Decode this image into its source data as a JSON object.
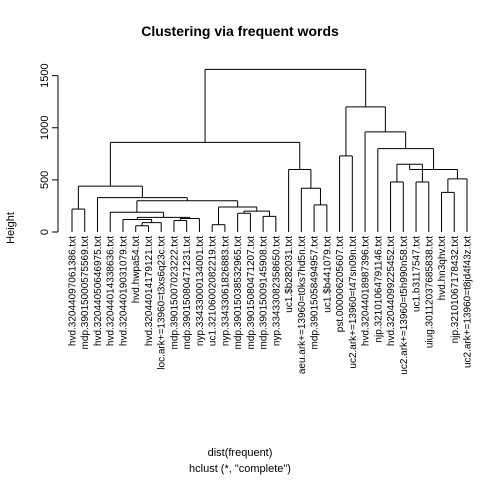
{
  "chart_data": {
    "type": "dendrogram",
    "title": "Clustering via frequent words",
    "ylabel": "Height",
    "xlabel": "dist(frequent)",
    "sublabel": "hclust (*, \"complete\")",
    "ylim": [
      0,
      1650
    ],
    "y_ticks": [
      0,
      500,
      1000,
      1500
    ],
    "leaves": [
      "hvd.32044097061386.txt",
      "mdp.39015000575569.txt",
      "hvd.32044050646975.txt",
      "hvd.32044014338636.txt",
      "hvd.32044019031079.txt",
      "hvd.hwpa54.txt",
      "hvd.32044014179121.txt",
      "loc.ark+=13960=t3xs6q23c.txt",
      "mdp.39015007023222.txt",
      "mdp.39015080471231.txt",
      "nyp.33433000134001.txt",
      "uc1.32106002082219.txt",
      "nyp.33433061826883.txt",
      "mdp.39015038532965.txt",
      "mdp.39015080471207.txt",
      "mdp.39015009145908.txt",
      "nyp.33433082358650.txt",
      "uc1.$b282031.txt",
      "aeu.ark+=13960=t0ks7hd5n.txt",
      "mdp.39015058494957.txt",
      "uc1.$b441079.txt",
      "pst.000006205607.txt",
      "uc2.ark+=13960=t47sn09n.txt",
      "hvd.32044018987396.txt",
      "njp.32101064791146.txt",
      "hvd.32044099225452.txt",
      "uc2.ark+=13960=t5h990n58.txt",
      "uc1.b3117547.txt",
      "uiug.30112037685838.txt",
      "hvd.hn3qhv.txt",
      "njp.32101067178432.txt",
      "uc2.ark+=13960=t8jd4f43z.txt"
    ],
    "merges": [
      {
        "left": [
          "L",
          0
        ],
        "right": [
          "L",
          1
        ],
        "height": 220
      },
      {
        "left": [
          "L",
          5
        ],
        "right": [
          "L",
          6
        ],
        "height": 60
      },
      {
        "left": [
          "M",
          1
        ],
        "right": [
          "L",
          7
        ],
        "height": 90
      },
      {
        "left": [
          "L",
          4
        ],
        "right": [
          "M",
          2
        ],
        "height": 120
      },
      {
        "left": [
          "L",
          8
        ],
        "right": [
          "L",
          9
        ],
        "height": 110
      },
      {
        "left": [
          "M",
          4
        ],
        "right": [
          "L",
          10
        ],
        "height": 130
      },
      {
        "left": [
          "M",
          3
        ],
        "right": [
          "M",
          5
        ],
        "height": 140
      },
      {
        "left": [
          "L",
          3
        ],
        "right": [
          "M",
          6
        ],
        "height": 190
      },
      {
        "left": [
          "L",
          11
        ],
        "right": [
          "L",
          12
        ],
        "height": 70
      },
      {
        "left": [
          "L",
          13
        ],
        "right": [
          "L",
          14
        ],
        "height": 180
      },
      {
        "left": [
          "L",
          15
        ],
        "right": [
          "L",
          16
        ],
        "height": 150
      },
      {
        "left": [
          "M",
          9
        ],
        "right": [
          "M",
          10
        ],
        "height": 200
      },
      {
        "left": [
          "M",
          8
        ],
        "right": [
          "M",
          11
        ],
        "height": 240
      },
      {
        "left": [
          "M",
          7
        ],
        "right": [
          "M",
          12
        ],
        "height": 300
      },
      {
        "left": [
          "L",
          2
        ],
        "right": [
          "M",
          13
        ],
        "height": 330
      },
      {
        "left": [
          "M",
          0
        ],
        "right": [
          "M",
          14
        ],
        "height": 440
      },
      {
        "left": [
          "L",
          19
        ],
        "right": [
          "L",
          20
        ],
        "height": 260
      },
      {
        "left": [
          "L",
          18
        ],
        "right": [
          "M",
          16
        ],
        "height": 420
      },
      {
        "left": [
          "L",
          17
        ],
        "right": [
          "M",
          17
        ],
        "height": 600
      },
      {
        "left": [
          "M",
          15
        ],
        "right": [
          "M",
          18
        ],
        "height": 860
      },
      {
        "left": [
          "L",
          21
        ],
        "right": [
          "L",
          22
        ],
        "height": 730
      },
      {
        "left": [
          "L",
          25
        ],
        "right": [
          "L",
          26
        ],
        "height": 480
      },
      {
        "left": [
          "L",
          27
        ],
        "right": [
          "L",
          28
        ],
        "height": 480
      },
      {
        "left": [
          "M",
          21
        ],
        "right": [
          "M",
          22
        ],
        "height": 650
      },
      {
        "left": [
          "L",
          29
        ],
        "right": [
          "L",
          30
        ],
        "height": 380
      },
      {
        "left": [
          "M",
          24
        ],
        "right": [
          "L",
          31
        ],
        "height": 510
      },
      {
        "left": [
          "M",
          23
        ],
        "right": [
          "M",
          25
        ],
        "height": 600
      },
      {
        "left": [
          "L",
          24
        ],
        "right": [
          "M",
          26
        ],
        "height": 800
      },
      {
        "left": [
          "L",
          23
        ],
        "right": [
          "M",
          27
        ],
        "height": 960
      },
      {
        "left": [
          "M",
          20
        ],
        "right": [
          "M",
          28
        ],
        "height": 1200
      },
      {
        "left": [
          "M",
          19
        ],
        "right": [
          "M",
          29
        ],
        "height": 1560
      }
    ]
  }
}
